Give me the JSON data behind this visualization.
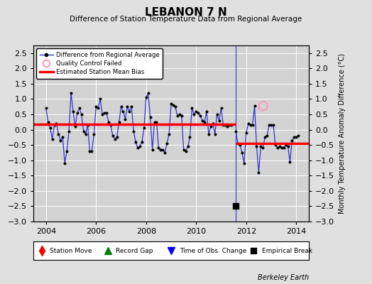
{
  "title": "LEBANON 7 N",
  "subtitle": "Difference of Station Temperature Data from Regional Average",
  "ylabel": "Monthly Temperature Anomaly Difference (°C)",
  "credit": "Berkeley Earth",
  "xlim": [
    2003.5,
    2014.5
  ],
  "ylim": [
    -3,
    2.75
  ],
  "yticks": [
    -3,
    -2.5,
    -2,
    -1.5,
    -1,
    -0.5,
    0,
    0.5,
    1,
    1.5,
    2,
    2.5
  ],
  "xticks": [
    2004,
    2006,
    2008,
    2010,
    2012,
    2014
  ],
  "background_color": "#e0e0e0",
  "plot_bg_color": "#d3d3d3",
  "grid_color": "#ffffff",
  "line_color": "#3333cc",
  "bias_color": "#ff0000",
  "break_x": 2011.58,
  "bias1_y": 0.18,
  "bias2_y": -0.45,
  "qc_fail_x": 2012.67,
  "qc_fail_y": 0.77,
  "empirical_break_x": 2011.58,
  "empirical_break_y": -2.5,
  "time_series": [
    [
      2004.0,
      0.7
    ],
    [
      2004.083,
      0.25
    ],
    [
      2004.167,
      0.05
    ],
    [
      2004.25,
      -0.3
    ],
    [
      2004.333,
      0.15
    ],
    [
      2004.417,
      0.2
    ],
    [
      2004.5,
      -0.15
    ],
    [
      2004.583,
      -0.35
    ],
    [
      2004.667,
      -0.25
    ],
    [
      2004.75,
      -1.1
    ],
    [
      2004.833,
      -0.7
    ],
    [
      2004.917,
      -0.05
    ],
    [
      2005.0,
      1.2
    ],
    [
      2005.083,
      0.6
    ],
    [
      2005.167,
      0.1
    ],
    [
      2005.25,
      0.55
    ],
    [
      2005.333,
      0.7
    ],
    [
      2005.417,
      0.5
    ],
    [
      2005.5,
      -0.05
    ],
    [
      2005.583,
      -0.15
    ],
    [
      2005.667,
      0.15
    ],
    [
      2005.75,
      -0.7
    ],
    [
      2005.833,
      -0.7
    ],
    [
      2005.917,
      -0.15
    ],
    [
      2006.0,
      0.75
    ],
    [
      2006.083,
      0.7
    ],
    [
      2006.167,
      1.0
    ],
    [
      2006.25,
      0.5
    ],
    [
      2006.333,
      0.55
    ],
    [
      2006.417,
      0.55
    ],
    [
      2006.5,
      0.25
    ],
    [
      2006.583,
      0.15
    ],
    [
      2006.667,
      -0.2
    ],
    [
      2006.75,
      -0.3
    ],
    [
      2006.833,
      -0.25
    ],
    [
      2006.917,
      0.25
    ],
    [
      2007.0,
      0.75
    ],
    [
      2007.083,
      0.6
    ],
    [
      2007.167,
      0.35
    ],
    [
      2007.25,
      0.75
    ],
    [
      2007.333,
      0.6
    ],
    [
      2007.417,
      0.75
    ],
    [
      2007.5,
      -0.05
    ],
    [
      2007.583,
      -0.4
    ],
    [
      2007.667,
      -0.6
    ],
    [
      2007.75,
      -0.55
    ],
    [
      2007.833,
      -0.4
    ],
    [
      2007.917,
      0.05
    ],
    [
      2008.0,
      1.05
    ],
    [
      2008.083,
      1.2
    ],
    [
      2008.167,
      0.4
    ],
    [
      2008.25,
      -0.65
    ],
    [
      2008.333,
      0.25
    ],
    [
      2008.417,
      0.25
    ],
    [
      2008.5,
      -0.6
    ],
    [
      2008.583,
      -0.65
    ],
    [
      2008.667,
      -0.65
    ],
    [
      2008.75,
      -0.75
    ],
    [
      2008.833,
      -0.45
    ],
    [
      2008.917,
      -0.15
    ],
    [
      2009.0,
      0.85
    ],
    [
      2009.083,
      0.8
    ],
    [
      2009.167,
      0.75
    ],
    [
      2009.25,
      0.45
    ],
    [
      2009.333,
      0.5
    ],
    [
      2009.417,
      0.45
    ],
    [
      2009.5,
      -0.65
    ],
    [
      2009.583,
      -0.7
    ],
    [
      2009.667,
      -0.55
    ],
    [
      2009.75,
      -0.25
    ],
    [
      2009.833,
      0.7
    ],
    [
      2009.917,
      0.5
    ],
    [
      2010.0,
      0.6
    ],
    [
      2010.083,
      0.55
    ],
    [
      2010.167,
      0.45
    ],
    [
      2010.25,
      0.3
    ],
    [
      2010.333,
      0.25
    ],
    [
      2010.417,
      0.6
    ],
    [
      2010.5,
      -0.15
    ],
    [
      2010.583,
      0.1
    ],
    [
      2010.667,
      0.2
    ],
    [
      2010.75,
      -0.15
    ],
    [
      2010.833,
      0.5
    ],
    [
      2010.917,
      0.3
    ],
    [
      2011.0,
      0.7
    ],
    [
      2011.083,
      0.15
    ],
    [
      2011.167,
      0.15
    ],
    [
      2011.25,
      0.1
    ],
    [
      2011.333,
      0.15
    ],
    [
      2011.417,
      0.15
    ],
    [
      2011.583,
      -0.05
    ],
    [
      2011.667,
      -0.45
    ],
    [
      2011.75,
      -0.5
    ],
    [
      2011.833,
      -0.75
    ],
    [
      2011.917,
      -1.1
    ],
    [
      2012.0,
      -0.1
    ],
    [
      2012.083,
      0.2
    ],
    [
      2012.167,
      0.15
    ],
    [
      2012.25,
      0.15
    ],
    [
      2012.333,
      0.77
    ],
    [
      2012.417,
      -0.55
    ],
    [
      2012.5,
      -1.4
    ],
    [
      2012.583,
      -0.55
    ],
    [
      2012.667,
      -0.6
    ],
    [
      2012.75,
      -0.25
    ],
    [
      2012.833,
      -0.2
    ],
    [
      2012.917,
      0.15
    ],
    [
      2013.0,
      0.15
    ],
    [
      2013.083,
      0.15
    ],
    [
      2013.167,
      -0.5
    ],
    [
      2013.25,
      -0.6
    ],
    [
      2013.333,
      -0.55
    ],
    [
      2013.417,
      -0.6
    ],
    [
      2013.5,
      -0.6
    ],
    [
      2013.583,
      -0.5
    ],
    [
      2013.667,
      -0.55
    ],
    [
      2013.75,
      -1.05
    ],
    [
      2013.833,
      -0.35
    ],
    [
      2013.917,
      -0.25
    ],
    [
      2014.0,
      -0.25
    ],
    [
      2014.083,
      -0.2
    ]
  ]
}
